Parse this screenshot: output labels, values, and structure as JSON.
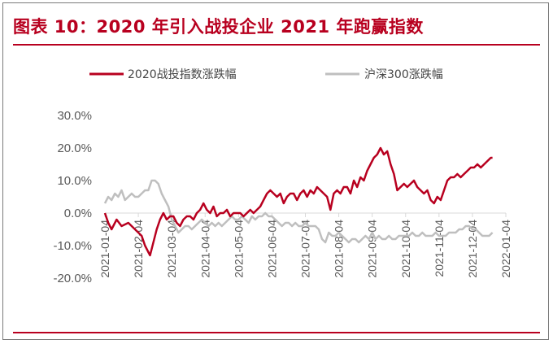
{
  "header": {
    "title": "图表 10：2020 年引入战投企业 2021 年跑赢指数"
  },
  "chart_data": {
    "type": "line",
    "title": "",
    "xlabel": "",
    "ylabel": "",
    "x_ticks": [
      "2021-01-04",
      "2021-02-04",
      "2021-03-04",
      "2021-04-04",
      "2021-05-04",
      "2021-06-04",
      "2021-07-04",
      "2021-08-04",
      "2021-09-04",
      "2021-10-04",
      "2021-11-04",
      "2021-12-04",
      "2022-01-04"
    ],
    "y_ticks": [
      "30.0%",
      "20.0%",
      "10.0%",
      "0.0%",
      "-10.0%",
      "-20.0%"
    ],
    "ylim": [
      -20,
      30
    ],
    "legend": "top",
    "grid": false,
    "series": [
      {
        "name": "2020战投指数涨跌幅",
        "color": "#b8001f",
        "points": [
          [
            0,
            0
          ],
          [
            0.1,
            -3
          ],
          [
            0.2,
            -5
          ],
          [
            0.35,
            -2
          ],
          [
            0.5,
            -4
          ],
          [
            0.7,
            -3
          ],
          [
            0.9,
            -5
          ],
          [
            1.0,
            -6
          ],
          [
            1.1,
            -7
          ],
          [
            1.2,
            -10
          ],
          [
            1.3,
            -12
          ],
          [
            1.35,
            -13
          ],
          [
            1.45,
            -9
          ],
          [
            1.55,
            -5
          ],
          [
            1.65,
            -2
          ],
          [
            1.75,
            0
          ],
          [
            1.85,
            -2
          ],
          [
            1.95,
            -1
          ],
          [
            2.05,
            -1
          ],
          [
            2.15,
            -3
          ],
          [
            2.25,
            -4
          ],
          [
            2.35,
            -2
          ],
          [
            2.45,
            -1
          ],
          [
            2.55,
            -1
          ],
          [
            2.65,
            -2
          ],
          [
            2.75,
            0
          ],
          [
            2.85,
            1
          ],
          [
            2.95,
            3
          ],
          [
            3.05,
            1
          ],
          [
            3.15,
            0
          ],
          [
            3.25,
            2
          ],
          [
            3.35,
            -1
          ],
          [
            3.45,
            0
          ],
          [
            3.55,
            0
          ],
          [
            3.65,
            1
          ],
          [
            3.75,
            -1
          ],
          [
            3.85,
            0
          ],
          [
            3.95,
            0
          ],
          [
            4.05,
            0
          ],
          [
            4.15,
            -1
          ],
          [
            4.25,
            0
          ],
          [
            4.35,
            1
          ],
          [
            4.45,
            0
          ],
          [
            4.55,
            1
          ],
          [
            4.65,
            2
          ],
          [
            4.75,
            4
          ],
          [
            4.85,
            6
          ],
          [
            4.95,
            7
          ],
          [
            5.05,
            6
          ],
          [
            5.15,
            5
          ],
          [
            5.25,
            6
          ],
          [
            5.35,
            3
          ],
          [
            5.45,
            5
          ],
          [
            5.55,
            6
          ],
          [
            5.65,
            6
          ],
          [
            5.75,
            4
          ],
          [
            5.85,
            6
          ],
          [
            5.95,
            7
          ],
          [
            6.05,
            5
          ],
          [
            6.15,
            7
          ],
          [
            6.25,
            6
          ],
          [
            6.35,
            8
          ],
          [
            6.45,
            7
          ],
          [
            6.55,
            6
          ],
          [
            6.65,
            5
          ],
          [
            6.75,
            1
          ],
          [
            6.85,
            6
          ],
          [
            6.95,
            7
          ],
          [
            7.05,
            6
          ],
          [
            7.15,
            8
          ],
          [
            7.25,
            8
          ],
          [
            7.35,
            6
          ],
          [
            7.45,
            10
          ],
          [
            7.55,
            8
          ],
          [
            7.65,
            11
          ],
          [
            7.75,
            10
          ],
          [
            7.85,
            13
          ],
          [
            7.95,
            15
          ],
          [
            8.05,
            17
          ],
          [
            8.15,
            18
          ],
          [
            8.25,
            20
          ],
          [
            8.35,
            18
          ],
          [
            8.45,
            19
          ],
          [
            8.55,
            15
          ],
          [
            8.65,
            12
          ],
          [
            8.75,
            7
          ],
          [
            8.85,
            8
          ],
          [
            8.95,
            9
          ],
          [
            9.05,
            8
          ],
          [
            9.15,
            9
          ],
          [
            9.25,
            10
          ],
          [
            9.35,
            8
          ],
          [
            9.45,
            7
          ],
          [
            9.55,
            6
          ],
          [
            9.65,
            7
          ],
          [
            9.75,
            4
          ],
          [
            9.85,
            3
          ],
          [
            9.95,
            5
          ],
          [
            10.05,
            4
          ],
          [
            10.15,
            7
          ],
          [
            10.25,
            10
          ],
          [
            10.35,
            11
          ],
          [
            10.45,
            11
          ],
          [
            10.55,
            12
          ],
          [
            10.65,
            11
          ],
          [
            10.75,
            12
          ],
          [
            10.85,
            13
          ],
          [
            10.95,
            14
          ],
          [
            11.05,
            14
          ],
          [
            11.15,
            15
          ],
          [
            11.25,
            14
          ],
          [
            11.35,
            15
          ],
          [
            11.45,
            16
          ],
          [
            11.55,
            17
          ],
          [
            11.6,
            17
          ]
        ]
      },
      {
        "name": "沪深300涨跌幅",
        "color": "#bfbfbf",
        "points": [
          [
            0,
            3
          ],
          [
            0.1,
            5
          ],
          [
            0.2,
            4
          ],
          [
            0.3,
            6
          ],
          [
            0.4,
            5
          ],
          [
            0.5,
            7
          ],
          [
            0.6,
            4
          ],
          [
            0.7,
            5
          ],
          [
            0.8,
            6
          ],
          [
            0.9,
            5
          ],
          [
            1.0,
            5
          ],
          [
            1.1,
            6
          ],
          [
            1.2,
            7
          ],
          [
            1.3,
            7
          ],
          [
            1.4,
            10
          ],
          [
            1.5,
            10
          ],
          [
            1.6,
            9
          ],
          [
            1.7,
            6
          ],
          [
            1.8,
            4
          ],
          [
            1.9,
            2
          ],
          [
            2.0,
            -2
          ],
          [
            2.1,
            -4
          ],
          [
            2.2,
            -6
          ],
          [
            2.3,
            -5
          ],
          [
            2.4,
            -4
          ],
          [
            2.5,
            -4
          ],
          [
            2.6,
            -5
          ],
          [
            2.7,
            -4
          ],
          [
            2.8,
            -3
          ],
          [
            2.9,
            -2
          ],
          [
            3.0,
            -3
          ],
          [
            3.1,
            -4
          ],
          [
            3.2,
            -3
          ],
          [
            3.3,
            -4
          ],
          [
            3.4,
            -3
          ],
          [
            3.5,
            -4
          ],
          [
            3.6,
            -3
          ],
          [
            3.7,
            -2
          ],
          [
            3.8,
            -1
          ],
          [
            3.9,
            -2
          ],
          [
            4.0,
            -2
          ],
          [
            4.1,
            -1
          ],
          [
            4.2,
            -2
          ],
          [
            4.3,
            -3
          ],
          [
            4.4,
            -1
          ],
          [
            4.5,
            -2
          ],
          [
            4.6,
            -1
          ],
          [
            4.7,
            -1
          ],
          [
            4.8,
            0
          ],
          [
            4.9,
            -1
          ],
          [
            5.0,
            -1
          ],
          [
            5.1,
            -2
          ],
          [
            5.2,
            -3
          ],
          [
            5.3,
            -4
          ],
          [
            5.4,
            -3
          ],
          [
            5.5,
            -3
          ],
          [
            5.6,
            -4
          ],
          [
            5.7,
            -3
          ],
          [
            5.8,
            -4
          ],
          [
            5.9,
            -4
          ],
          [
            6.0,
            -3
          ],
          [
            6.1,
            -4
          ],
          [
            6.2,
            -4
          ],
          [
            6.3,
            -4
          ],
          [
            6.4,
            -5
          ],
          [
            6.5,
            -8
          ],
          [
            6.6,
            -9
          ],
          [
            6.7,
            -6
          ],
          [
            6.8,
            -7
          ],
          [
            6.9,
            -7
          ],
          [
            7.0,
            -6
          ],
          [
            7.1,
            -7
          ],
          [
            7.2,
            -8
          ],
          [
            7.3,
            -9
          ],
          [
            7.4,
            -8
          ],
          [
            7.5,
            -8
          ],
          [
            7.6,
            -9
          ],
          [
            7.7,
            -8
          ],
          [
            7.8,
            -7
          ],
          [
            7.9,
            -8
          ],
          [
            8.0,
            -6
          ],
          [
            8.1,
            -8
          ],
          [
            8.2,
            -7
          ],
          [
            8.3,
            -8
          ],
          [
            8.4,
            -8
          ],
          [
            8.5,
            -7
          ],
          [
            8.6,
            -8
          ],
          [
            8.7,
            -8
          ],
          [
            8.8,
            -7
          ],
          [
            8.9,
            -7
          ],
          [
            9.0,
            -7
          ],
          [
            9.1,
            -7
          ],
          [
            9.2,
            -6
          ],
          [
            9.3,
            -7
          ],
          [
            9.4,
            -7
          ],
          [
            9.5,
            -6
          ],
          [
            9.6,
            -7
          ],
          [
            9.7,
            -7
          ],
          [
            9.8,
            -7
          ],
          [
            9.9,
            -6
          ],
          [
            10.0,
            -7
          ],
          [
            10.1,
            -7
          ],
          [
            10.2,
            -7
          ],
          [
            10.3,
            -6
          ],
          [
            10.4,
            -6
          ],
          [
            10.5,
            -6
          ],
          [
            10.6,
            -5
          ],
          [
            10.7,
            -5
          ],
          [
            10.8,
            -4
          ],
          [
            10.9,
            -4
          ],
          [
            11.0,
            -5
          ],
          [
            11.1,
            -5
          ],
          [
            11.2,
            -6
          ],
          [
            11.3,
            -7
          ],
          [
            11.4,
            -7
          ],
          [
            11.5,
            -7
          ],
          [
            11.6,
            -6
          ]
        ]
      }
    ]
  }
}
